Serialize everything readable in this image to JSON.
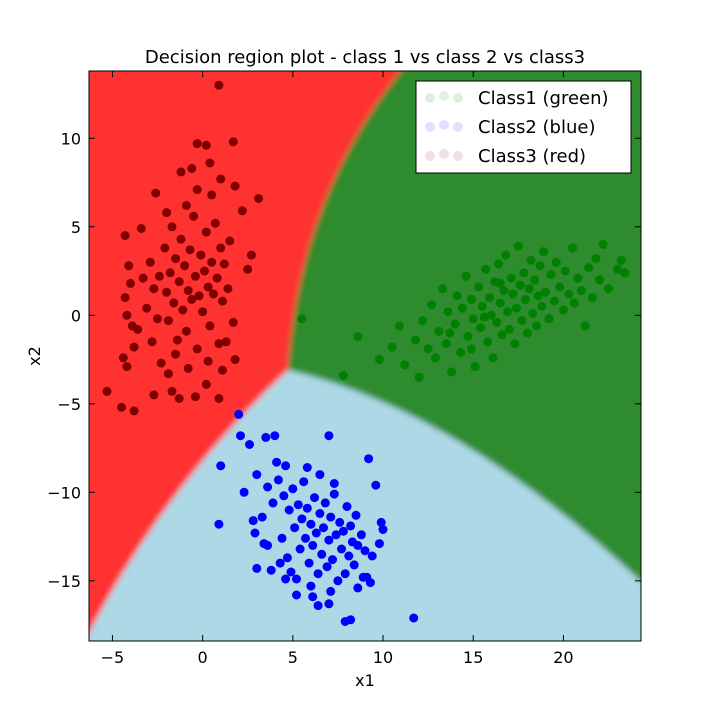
{
  "chart_data": {
    "type": "scatter",
    "title": "Decision region plot - class 1 vs class 2 vs class3",
    "xlabel": "x1",
    "ylabel": "x2",
    "xlim": [
      -6.3,
      24.3
    ],
    "ylim": [
      -18.4,
      13.8
    ],
    "xticks": [
      -5,
      0,
      5,
      10,
      15,
      20
    ],
    "yticks": [
      -15,
      -10,
      -5,
      0,
      5,
      10
    ],
    "xtick_labels": [
      "−5",
      "0",
      "5",
      "10",
      "15",
      "20"
    ],
    "ytick_labels": [
      "−15",
      "−10",
      "−5",
      "0",
      "5",
      "10"
    ],
    "grid": false,
    "legend_position": "top-right",
    "legend": [
      "Class1 (green)",
      "Class2 (blue)",
      "Class3 (red)"
    ],
    "colors": {
      "region_red": "#ff3333",
      "region_green": "#2e8b2e",
      "region_blue": "#add8e6",
      "class1_points": "#008000",
      "class2_points": "#0000ff",
      "class3_points": "#800000"
    },
    "regions": [
      {
        "label": "Class3 (red)",
        "area": "left"
      },
      {
        "label": "Class1 (green)",
        "area": "upper-right"
      },
      {
        "label": "Class2 (blue)",
        "area": "bottom"
      }
    ],
    "series": [
      {
        "name": "Class1 (green)",
        "color": "#008000",
        "points": [
          [
            5.5,
            -0.2
          ],
          [
            7.8,
            -3.4
          ],
          [
            8.6,
            -1.2
          ],
          [
            9.8,
            -2.5
          ],
          [
            10.5,
            -1.8
          ],
          [
            10.9,
            -0.6
          ],
          [
            11.2,
            -2.8
          ],
          [
            11.8,
            -1.4
          ],
          [
            12.0,
            -3.5
          ],
          [
            12.2,
            -0.3
          ],
          [
            12.5,
            -1.9
          ],
          [
            12.7,
            0.6
          ],
          [
            12.9,
            -2.4
          ],
          [
            13.1,
            -0.9
          ],
          [
            13.3,
            1.5
          ],
          [
            13.5,
            -1.6
          ],
          [
            13.6,
            0.2
          ],
          [
            13.8,
            -3.2
          ],
          [
            14.0,
            -0.5
          ],
          [
            14.1,
            1.1
          ],
          [
            14.3,
            -2.1
          ],
          [
            14.4,
            0.4
          ],
          [
            14.6,
            2.2
          ],
          [
            14.7,
            -1.2
          ],
          [
            14.9,
            0.9
          ],
          [
            15.0,
            -0.2
          ],
          [
            15.1,
            -2.9
          ],
          [
            15.3,
            1.6
          ],
          [
            15.4,
            -0.7
          ],
          [
            15.5,
            0.5
          ],
          [
            15.7,
            2.6
          ],
          [
            15.8,
            -1.5
          ],
          [
            15.9,
            1.0
          ],
          [
            16.0,
            0.0
          ],
          [
            16.1,
            -2.4
          ],
          [
            16.2,
            1.9
          ],
          [
            16.3,
            -0.4
          ],
          [
            16.4,
            2.9
          ],
          [
            16.5,
            0.7
          ],
          [
            16.6,
            -1.1
          ],
          [
            16.7,
            1.4
          ],
          [
            16.8,
            3.4
          ],
          [
            16.9,
            0.2
          ],
          [
            17.0,
            -0.8
          ],
          [
            17.1,
            2.1
          ],
          [
            17.2,
            1.2
          ],
          [
            17.3,
            -1.6
          ],
          [
            17.4,
            0.4
          ],
          [
            17.5,
            3.9
          ],
          [
            17.6,
            1.7
          ],
          [
            17.7,
            -0.3
          ],
          [
            17.8,
            2.4
          ],
          [
            17.9,
            0.9
          ],
          [
            18.0,
            -1.0
          ],
          [
            18.1,
            1.5
          ],
          [
            18.2,
            3.1
          ],
          [
            18.3,
            0.1
          ],
          [
            18.4,
            2.0
          ],
          [
            18.5,
            -0.6
          ],
          [
            18.6,
            1.1
          ],
          [
            18.7,
            2.8
          ],
          [
            18.8,
            0.5
          ],
          [
            18.9,
            3.6
          ],
          [
            19.0,
            1.3
          ],
          [
            19.2,
            -0.2
          ],
          [
            19.3,
            2.3
          ],
          [
            19.5,
            0.8
          ],
          [
            19.6,
            3.0
          ],
          [
            19.8,
            1.6
          ],
          [
            20.0,
            0.3
          ],
          [
            20.1,
            2.5
          ],
          [
            20.3,
            1.2
          ],
          [
            20.5,
            3.8
          ],
          [
            20.6,
            0.7
          ],
          [
            20.8,
            2.1
          ],
          [
            21.0,
            1.4
          ],
          [
            21.2,
            -0.6
          ],
          [
            21.4,
            2.7
          ],
          [
            21.6,
            1.0
          ],
          [
            21.8,
            3.2
          ],
          [
            22.0,
            2.0
          ],
          [
            22.2,
            4.0
          ],
          [
            22.5,
            1.5
          ],
          [
            23.0,
            2.6
          ],
          [
            23.2,
            3.1
          ],
          [
            23.4,
            2.4
          ],
          [
            13.7,
            -1.0
          ],
          [
            14.9,
            -1.9
          ],
          [
            15.6,
            -0.1
          ],
          [
            16.5,
            1.8
          ]
        ]
      },
      {
        "name": "Class2 (blue)",
        "color": "#0000ff",
        "points": [
          [
            2.0,
            -5.6
          ],
          [
            2.1,
            -6.8
          ],
          [
            1.0,
            -8.5
          ],
          [
            0.9,
            -11.8
          ],
          [
            2.6,
            -7.3
          ],
          [
            3.5,
            -6.9
          ],
          [
            4.1,
            -8.3
          ],
          [
            4.0,
            -6.8
          ],
          [
            7.0,
            -6.8
          ],
          [
            9.2,
            -8.1
          ],
          [
            2.3,
            -10.0
          ],
          [
            3.0,
            -9.0
          ],
          [
            3.3,
            -11.4
          ],
          [
            2.9,
            -12.3
          ],
          [
            3.6,
            -13.0
          ],
          [
            3.0,
            -14.3
          ],
          [
            3.8,
            -14.4
          ],
          [
            4.6,
            -14.9
          ],
          [
            5.2,
            -15.8
          ],
          [
            6.1,
            -15.9
          ],
          [
            6.4,
            -16.4
          ],
          [
            7.0,
            -16.3
          ],
          [
            8.2,
            -17.2
          ],
          [
            7.9,
            -17.3
          ],
          [
            9.3,
            -15.1
          ],
          [
            11.7,
            -17.1
          ],
          [
            9.6,
            -9.6
          ],
          [
            10.0,
            -12.1
          ],
          [
            9.8,
            -12.9
          ],
          [
            9.1,
            -14.8
          ],
          [
            4.2,
            -9.3
          ],
          [
            4.5,
            -10.2
          ],
          [
            4.8,
            -11.0
          ],
          [
            5.0,
            -9.8
          ],
          [
            5.1,
            -12.0
          ],
          [
            5.3,
            -10.7
          ],
          [
            5.4,
            -13.2
          ],
          [
            5.5,
            -11.5
          ],
          [
            5.6,
            -9.4
          ],
          [
            5.7,
            -12.6
          ],
          [
            5.8,
            -10.9
          ],
          [
            5.9,
            -14.0
          ],
          [
            6.0,
            -11.8
          ],
          [
            6.1,
            -13.0
          ],
          [
            6.2,
            -10.3
          ],
          [
            6.3,
            -12.3
          ],
          [
            6.4,
            -14.6
          ],
          [
            6.5,
            -11.2
          ],
          [
            6.6,
            -13.5
          ],
          [
            6.7,
            -12.0
          ],
          [
            6.8,
            -10.6
          ],
          [
            6.9,
            -14.2
          ],
          [
            7.0,
            -12.7
          ],
          [
            7.1,
            -11.4
          ],
          [
            7.2,
            -13.8
          ],
          [
            7.3,
            -10.1
          ],
          [
            7.4,
            -12.4
          ],
          [
            7.5,
            -15.0
          ],
          [
            7.6,
            -11.7
          ],
          [
            7.7,
            -13.2
          ],
          [
            7.8,
            -12.2
          ],
          [
            7.9,
            -14.6
          ],
          [
            8.0,
            -10.8
          ],
          [
            8.1,
            -13.6
          ],
          [
            8.2,
            -11.9
          ],
          [
            8.3,
            -12.8
          ],
          [
            8.4,
            -14.1
          ],
          [
            8.5,
            -11.3
          ],
          [
            8.6,
            -13.0
          ],
          [
            8.8,
            -12.4
          ],
          [
            8.9,
            -14.8
          ],
          [
            9.0,
            -13.3
          ],
          [
            4.4,
            -12.6
          ],
          [
            4.7,
            -13.7
          ],
          [
            4.9,
            -14.5
          ],
          [
            5.2,
            -14.9
          ],
          [
            3.9,
            -10.6
          ],
          [
            3.4,
            -12.9
          ],
          [
            4.3,
            -14.0
          ],
          [
            6.5,
            -9.0
          ],
          [
            7.3,
            -9.5
          ],
          [
            5.8,
            -8.6
          ],
          [
            6.0,
            -15.3
          ],
          [
            7.1,
            -15.6
          ],
          [
            8.6,
            -15.4
          ],
          [
            9.4,
            -13.6
          ],
          [
            9.9,
            -11.7
          ],
          [
            4.6,
            -8.5
          ],
          [
            3.6,
            -9.7
          ],
          [
            2.8,
            -11.6
          ]
        ]
      },
      {
        "name": "Class3 (red)",
        "color": "#800000",
        "points": [
          [
            0.9,
            13.0
          ],
          [
            1.7,
            9.8
          ],
          [
            0.2,
            9.6
          ],
          [
            -0.3,
            9.7
          ],
          [
            0.4,
            8.6
          ],
          [
            -1.2,
            8.1
          ],
          [
            -0.6,
            8.3
          ],
          [
            1.0,
            7.7
          ],
          [
            1.8,
            7.3
          ],
          [
            -2.6,
            6.9
          ],
          [
            3.1,
            6.6
          ],
          [
            2.2,
            5.9
          ],
          [
            -4.3,
            4.5
          ],
          [
            -3.4,
            4.9
          ],
          [
            2.7,
            3.4
          ],
          [
            -4.1,
            2.8
          ],
          [
            -4.0,
            1.8
          ],
          [
            2.5,
            2.6
          ],
          [
            -4.3,
            1.0
          ],
          [
            -4.2,
            0.0
          ],
          [
            -3.9,
            -0.6
          ],
          [
            -3.8,
            -1.8
          ],
          [
            -4.4,
            -2.4
          ],
          [
            -4.2,
            -2.9
          ],
          [
            -5.3,
            -4.3
          ],
          [
            -4.5,
            -5.2
          ],
          [
            -3.8,
            -5.4
          ],
          [
            -2.7,
            -4.5
          ],
          [
            -1.7,
            -4.3
          ],
          [
            -1.3,
            -4.7
          ],
          [
            -0.4,
            -4.6
          ],
          [
            0.2,
            -3.9
          ],
          [
            0.9,
            -4.7
          ],
          [
            1.1,
            -3.1
          ],
          [
            1.8,
            -2.5
          ],
          [
            1.7,
            -0.4
          ],
          [
            -2.1,
            3.8
          ],
          [
            -2.0,
            1.3
          ],
          [
            -1.9,
            -0.3
          ],
          [
            -1.8,
            2.4
          ],
          [
            -1.7,
            5.0
          ],
          [
            -1.6,
            0.7
          ],
          [
            -1.5,
            3.2
          ],
          [
            -1.4,
            -1.4
          ],
          [
            -1.3,
            1.9
          ],
          [
            -1.2,
            4.3
          ],
          [
            -1.1,
            0.3
          ],
          [
            -1.0,
            2.8
          ],
          [
            -0.9,
            -0.9
          ],
          [
            -0.8,
            1.4
          ],
          [
            -0.7,
            3.7
          ],
          [
            -0.6,
            0.9
          ],
          [
            -0.5,
            5.6
          ],
          [
            -0.4,
            2.2
          ],
          [
            -0.3,
            -1.9
          ],
          [
            -0.2,
            1.1
          ],
          [
            -0.1,
            3.4
          ],
          [
            0.0,
            0.2
          ],
          [
            0.1,
            2.5
          ],
          [
            0.2,
            4.7
          ],
          [
            0.3,
            1.6
          ],
          [
            0.4,
            -0.6
          ],
          [
            0.5,
            3.0
          ],
          [
            0.6,
            1.2
          ],
          [
            0.7,
            5.2
          ],
          [
            0.8,
            2.1
          ],
          [
            0.9,
            -1.6
          ],
          [
            1.0,
            3.8
          ],
          [
            1.1,
            0.8
          ],
          [
            1.2,
            2.9
          ],
          [
            -2.4,
            2.2
          ],
          [
            -2.5,
            -0.2
          ],
          [
            -2.7,
            1.5
          ],
          [
            -2.9,
            3.0
          ],
          [
            -3.1,
            0.4
          ],
          [
            -2.8,
            -1.5
          ],
          [
            -2.3,
            -2.7
          ],
          [
            -1.9,
            -3.3
          ],
          [
            -0.8,
            -3.0
          ],
          [
            0.3,
            -2.6
          ],
          [
            1.3,
            -1.5
          ],
          [
            -3.3,
            2.1
          ],
          [
            -3.6,
            -0.8
          ],
          [
            1.5,
            4.2
          ],
          [
            -0.9,
            6.2
          ],
          [
            0.5,
            6.8
          ],
          [
            -2.0,
            5.8
          ],
          [
            1.4,
            1.5
          ],
          [
            -1.5,
            -2.2
          ],
          [
            -0.3,
            7.1
          ]
        ]
      }
    ]
  }
}
